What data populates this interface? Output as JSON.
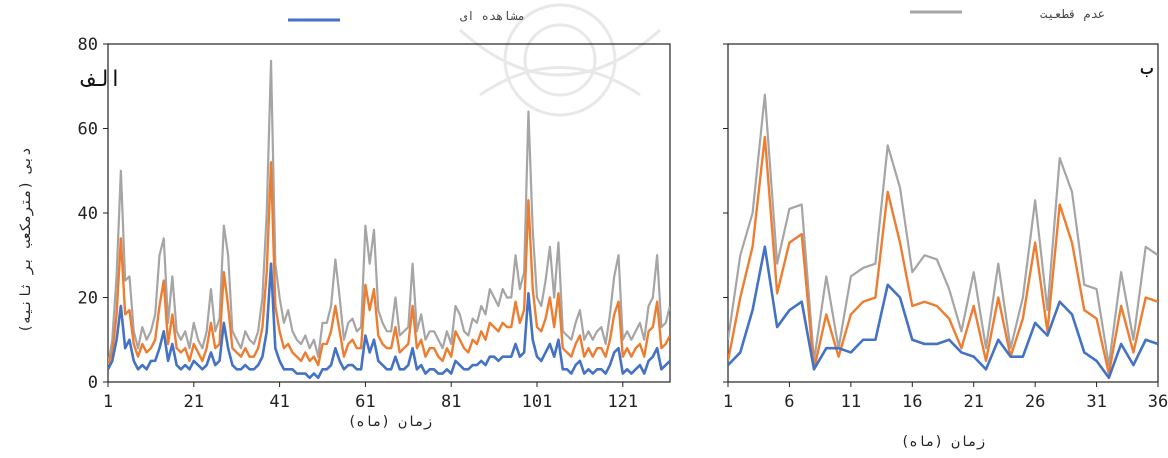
{
  "legend": {
    "observed_label": "مشاهده ای",
    "uncertainty_label": "عدم قطعیت"
  },
  "y_axis_label": "دبی (مترمکعب بر ثانیه)",
  "colors": {
    "observed": "#4472c4",
    "median": "#ed7d31",
    "uncertainty": "#a5a5a5"
  },
  "chart_data": [
    {
      "type": "line",
      "panel_label": "الف",
      "xlabel": "زمان (ماه)",
      "ylabel": "دبی (مترمکعب بر ثانیه)",
      "xlim": [
        1,
        132
      ],
      "ylim": [
        0,
        80
      ],
      "xticks": [
        1,
        21,
        41,
        61,
        81,
        101,
        121
      ],
      "yticks": [
        0,
        20,
        40,
        60,
        80
      ],
      "series": [
        {
          "name": "عدم قطعیت",
          "color": "#a5a5a5",
          "values": [
            4,
            10,
            25,
            50,
            24,
            25,
            12,
            8,
            13,
            10,
            12,
            16,
            30,
            34,
            14,
            25,
            12,
            10,
            12,
            8,
            14,
            10,
            8,
            12,
            22,
            12,
            15,
            37,
            30,
            12,
            10,
            8,
            12,
            10,
            9,
            12,
            20,
            40,
            76,
            28,
            20,
            14,
            17,
            12,
            10,
            9,
            11,
            8,
            10,
            6,
            14,
            14,
            18,
            29,
            20,
            10,
            14,
            15,
            12,
            13,
            37,
            28,
            36,
            17,
            14,
            12,
            12,
            20,
            11,
            12,
            13,
            28,
            12,
            16,
            10,
            12,
            12,
            10,
            8,
            12,
            9,
            18,
            16,
            12,
            11,
            15,
            14,
            18,
            16,
            22,
            20,
            18,
            22,
            20,
            20,
            30,
            22,
            26,
            64,
            36,
            20,
            18,
            24,
            32,
            20,
            33,
            12,
            11,
            10,
            14,
            17,
            10,
            12,
            10,
            12,
            13,
            9,
            16,
            25,
            30,
            10,
            12,
            10,
            12,
            14,
            10,
            18,
            20,
            30,
            13,
            14,
            18
          ]
        },
        {
          "name": "",
          "color": "#ed7d31",
          "values": [
            4,
            7,
            16,
            34,
            16,
            17,
            9,
            6,
            9,
            7,
            8,
            10,
            18,
            24,
            9,
            16,
            8,
            7,
            8,
            5,
            9,
            7,
            5,
            8,
            14,
            8,
            9,
            26,
            18,
            8,
            7,
            6,
            8,
            6,
            6,
            8,
            13,
            26,
            52,
            18,
            12,
            8,
            9,
            7,
            6,
            5,
            7,
            5,
            6,
            4,
            9,
            9,
            12,
            18,
            12,
            6,
            9,
            10,
            8,
            8,
            23,
            17,
            22,
            11,
            9,
            8,
            8,
            13,
            7,
            8,
            9,
            18,
            8,
            10,
            6,
            8,
            8,
            6,
            5,
            8,
            6,
            12,
            10,
            8,
            7,
            10,
            9,
            12,
            10,
            14,
            13,
            12,
            14,
            13,
            13,
            19,
            14,
            17,
            43,
            22,
            13,
            12,
            15,
            20,
            13,
            21,
            8,
            7,
            6,
            9,
            11,
            6,
            8,
            6,
            8,
            8,
            6,
            10,
            16,
            19,
            6,
            8,
            6,
            8,
            9,
            6,
            12,
            13,
            19,
            8,
            9,
            11
          ]
        },
        {
          "name": "مشاهده ای",
          "color": "#4472c4",
          "values": [
            3,
            5,
            10,
            18,
            8,
            10,
            5,
            3,
            4,
            3,
            5,
            5,
            8,
            12,
            5,
            9,
            4,
            3,
            4,
            3,
            5,
            4,
            3,
            4,
            7,
            4,
            5,
            14,
            8,
            4,
            3,
            3,
            4,
            3,
            3,
            4,
            6,
            12,
            28,
            8,
            5,
            3,
            3,
            3,
            2,
            2,
            2,
            1,
            2,
            1,
            3,
            3,
            4,
            8,
            5,
            3,
            4,
            4,
            3,
            3,
            11,
            7,
            10,
            5,
            4,
            3,
            3,
            6,
            3,
            3,
            4,
            8,
            3,
            4,
            2,
            3,
            3,
            2,
            2,
            3,
            2,
            5,
            4,
            3,
            3,
            4,
            4,
            5,
            4,
            6,
            6,
            5,
            6,
            6,
            6,
            9,
            6,
            7,
            21,
            10,
            6,
            5,
            7,
            9,
            6,
            10,
            3,
            3,
            2,
            4,
            5,
            2,
            3,
            2,
            3,
            3,
            2,
            4,
            7,
            8,
            2,
            3,
            2,
            3,
            4,
            2,
            5,
            6,
            8,
            3,
            4,
            5
          ]
        }
      ]
    },
    {
      "type": "line",
      "panel_label": "ب",
      "xlabel": "زمان (ماه)",
      "ylabel": "",
      "xlim": [
        1,
        36
      ],
      "ylim": [
        0,
        80
      ],
      "xticks": [
        1,
        6,
        11,
        16,
        21,
        26,
        31,
        36
      ],
      "series": [
        {
          "name": "عدم قطعیت",
          "color": "#a5a5a5",
          "values": [
            10,
            30,
            40,
            68,
            28,
            41,
            42,
            5,
            25,
            8,
            25,
            27,
            28,
            56,
            46,
            26,
            30,
            29,
            22,
            12,
            26,
            8,
            28,
            8,
            20,
            43,
            17,
            53,
            45,
            23,
            22,
            4,
            26,
            10,
            32,
            30
          ]
        },
        {
          "name": "",
          "color": "#ed7d31",
          "values": [
            5,
            20,
            32,
            58,
            21,
            33,
            35,
            3,
            16,
            6,
            16,
            19,
            20,
            45,
            33,
            18,
            19,
            18,
            15,
            8,
            18,
            5,
            20,
            6,
            15,
            33,
            12,
            42,
            33,
            17,
            15,
            2,
            18,
            7,
            20,
            19
          ]
        },
        {
          "name": "مشاهده ای",
          "color": "#4472c4",
          "values": [
            4,
            7,
            17,
            32,
            13,
            17,
            19,
            3,
            8,
            8,
            7,
            10,
            10,
            23,
            20,
            10,
            9,
            9,
            10,
            7,
            6,
            3,
            10,
            6,
            6,
            14,
            11,
            19,
            16,
            7,
            5,
            1,
            9,
            4,
            10,
            9
          ]
        }
      ]
    }
  ]
}
